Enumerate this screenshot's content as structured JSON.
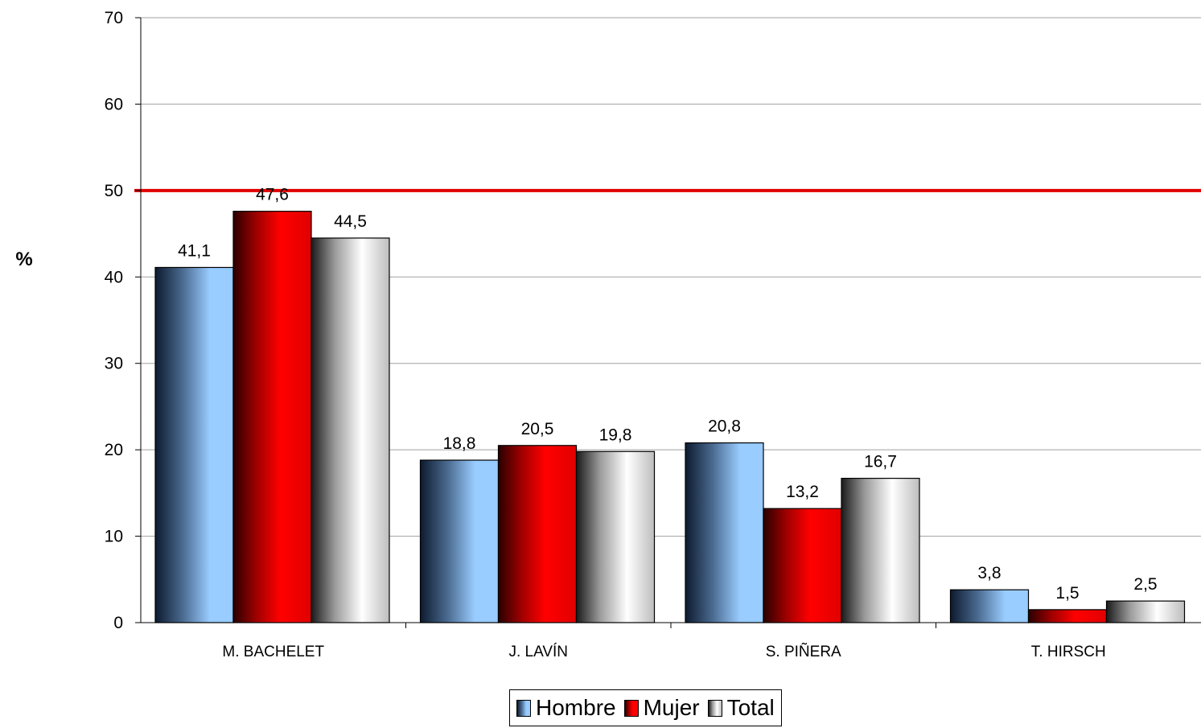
{
  "chart_data": {
    "type": "bar",
    "title": "",
    "xlabel": "",
    "ylabel": "%",
    "ylim": [
      0,
      70
    ],
    "yticks": [
      "0",
      "10",
      "20",
      "30",
      "40",
      "50",
      "60",
      "70"
    ],
    "grid": true,
    "reference_line": {
      "y": 50,
      "color": "#e00000"
    },
    "categories": [
      "M. BACHELET",
      "J. LAVÍN",
      "S. PIÑERA",
      "T. HIRSCH"
    ],
    "series": [
      {
        "name": "Hombre",
        "values": [
          41.1,
          18.8,
          20.8,
          3.8
        ],
        "labels": [
          "41,1",
          "18,8",
          "20,8",
          "3,8"
        ],
        "color": "#99ccff"
      },
      {
        "name": "Mujer",
        "values": [
          47.6,
          20.5,
          13.2,
          1.5
        ],
        "labels": [
          "47,6",
          "20,5",
          "13,2",
          "1,5"
        ],
        "color": "#ff0000"
      },
      {
        "name": "Total",
        "values": [
          44.5,
          19.8,
          16.7,
          2.5
        ],
        "labels": [
          "44,5",
          "19,8",
          "16,7",
          "2,5"
        ],
        "color": "#ffffff"
      }
    ],
    "legend_position": "bottom"
  }
}
